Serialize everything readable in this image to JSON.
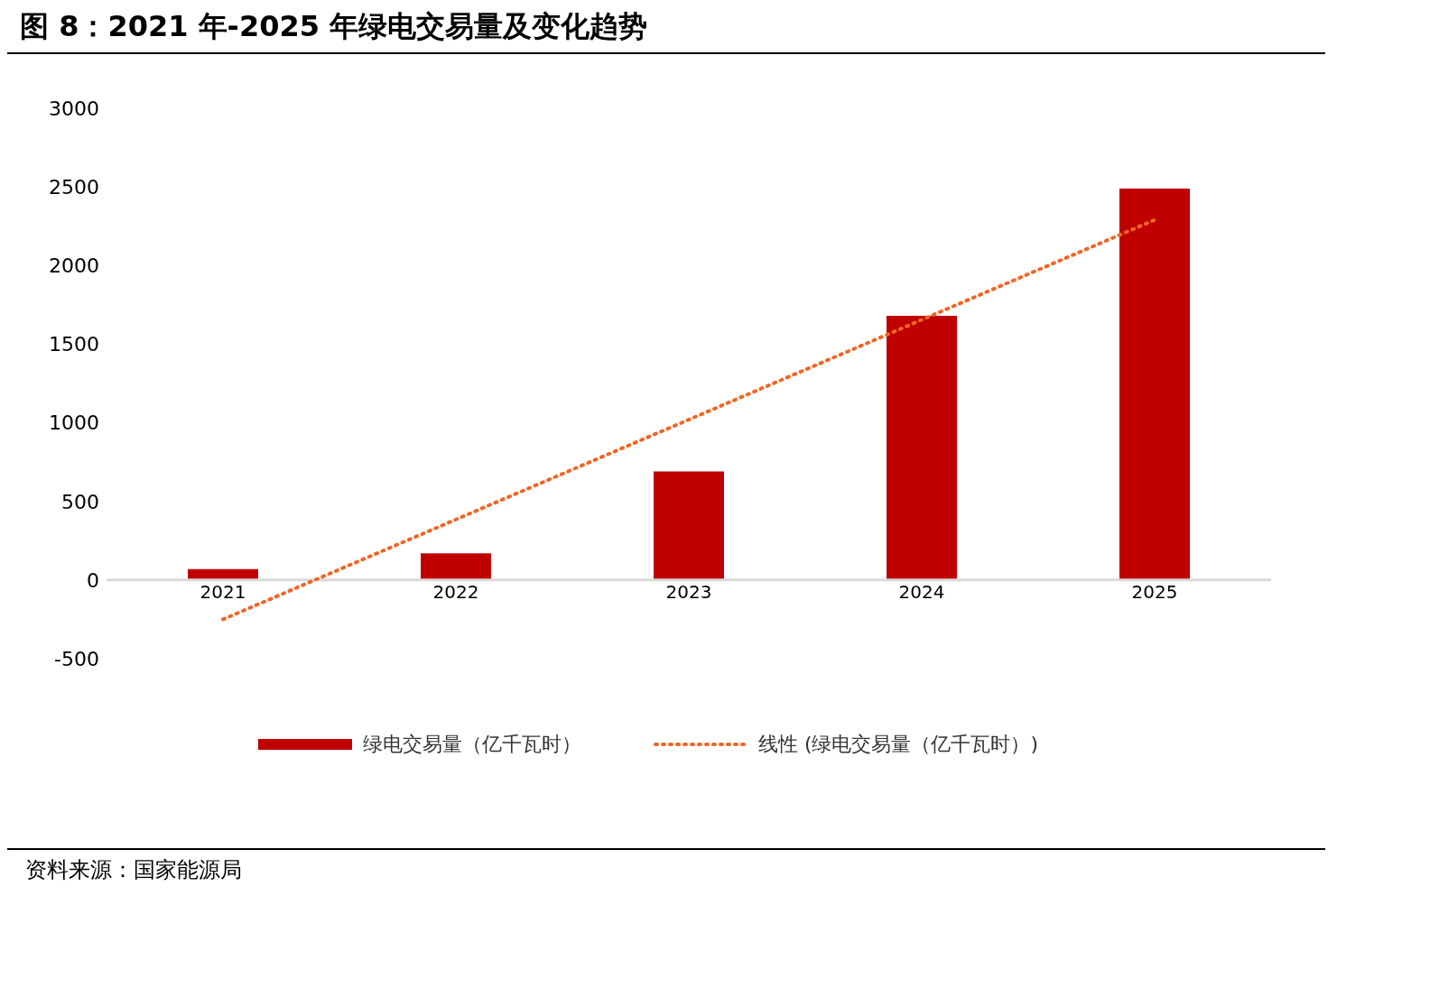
{
  "chart_data": {
    "type": "bar",
    "title": "图 8：2021 年-2025 年绿电交易量及变化趋势",
    "categories": [
      "2021",
      "2022",
      "2023",
      "2024",
      "2025"
    ],
    "series": [
      {
        "name": "绿电交易量（亿千瓦时）",
        "color": "#c00000",
        "values": [
          70,
          170,
          690,
          1680,
          2490
        ]
      },
      {
        "name": "线性 (绿电交易量（亿千瓦时）)",
        "type": "line",
        "color": "#f26522",
        "line_style": "dotted",
        "marker": "none",
        "values": [
          -250,
          385,
          1020,
          1655,
          2290
        ]
      }
    ],
    "ylim": [
      -500,
      3000
    ],
    "yticks": [
      -500,
      0,
      500,
      1000,
      1500,
      2000,
      2500,
      3000
    ],
    "grid": false,
    "legend": "bottom",
    "annotations": [
      "资料来源：国家能源局"
    ]
  }
}
